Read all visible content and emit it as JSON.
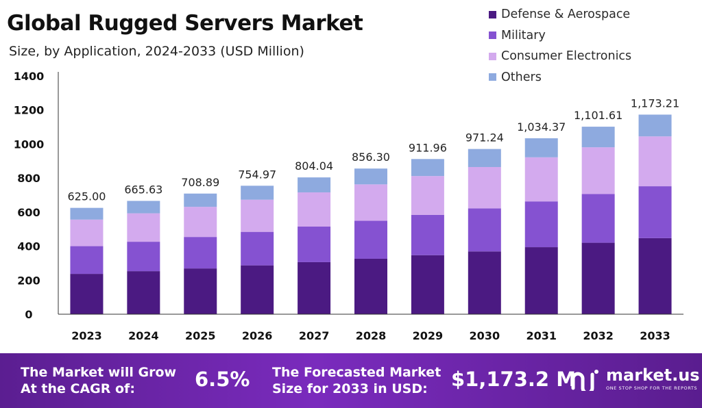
{
  "chart_data": {
    "type": "bar",
    "stacked": true,
    "title": "Global Rugged Servers Market",
    "subtitle": "Size, by Application, 2024-2033 (USD Million)",
    "categories": [
      "2023",
      "2024",
      "2025",
      "2026",
      "2027",
      "2028",
      "2029",
      "2030",
      "2031",
      "2032",
      "2033"
    ],
    "series": [
      {
        "name": "Defense & Aerospace",
        "color": "#4b1a82",
        "values": [
          237,
          253,
          269,
          287,
          306,
          326,
          347,
          369,
          394,
          420,
          447
        ]
      },
      {
        "name": "Military",
        "color": "#8552d1",
        "values": [
          163,
          173,
          185,
          197,
          209,
          223,
          237,
          253,
          269,
          286,
          305
        ]
      },
      {
        "name": "Consumer Electronics",
        "color": "#d3aaee",
        "values": [
          156,
          167,
          177,
          189,
          201,
          214,
          228,
          243,
          259,
          275,
          293
        ]
      },
      {
        "name": "Others",
        "color": "#8eaadf",
        "values": [
          69,
          73,
          78,
          82,
          88,
          93,
          100,
          106,
          112,
          121,
          128
        ]
      }
    ],
    "totals": [
      "625.00",
      "665.63",
      "708.89",
      "754.97",
      "804.04",
      "856.30",
      "911.96",
      "971.24",
      "1,034.37",
      "1,101.61",
      "1,173.21"
    ],
    "yticks": [
      "0",
      "200",
      "400",
      "600",
      "800",
      "1000",
      "1200",
      "1400"
    ],
    "ylim": [
      0,
      1400
    ],
    "legend_position": "top-right",
    "grid": false
  },
  "footer": {
    "cagr_label_line1": "The Market will Grow",
    "cagr_label_line2": "At the CAGR of:",
    "cagr_value": "6.5%",
    "forecast_label_line1": "The Forecasted Market",
    "forecast_label_line2": "Size for 2033 in USD:",
    "forecast_value": "$1,173.2 M",
    "brand_name": "market.us",
    "brand_tagline": "ONE STOP SHOP FOR THE REPORTS"
  },
  "colors": {
    "footer_gradient_start": "#5b1e91",
    "footer_gradient_end": "#7a2bbd",
    "axis": "#333333"
  }
}
